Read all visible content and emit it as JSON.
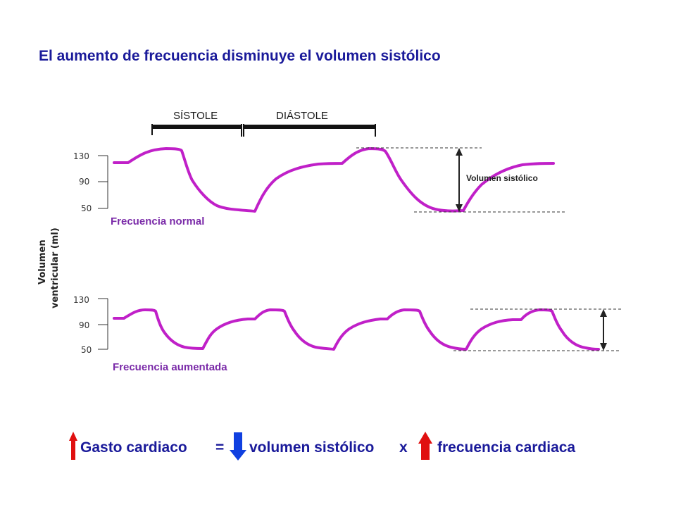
{
  "title": "El aumento de frecuencia disminuye el volumen sistólico",
  "phases": {
    "systole": "SÍSTOLE",
    "diastole": "DIÁSTOLE"
  },
  "y_axis_label": {
    "line1": "Volumen",
    "line2": "ventricular (ml)"
  },
  "ticks": [
    "130",
    "90",
    "50"
  ],
  "panels": {
    "normal": {
      "label": "Frecuencia normal"
    },
    "increased": {
      "label": "Frecuencia aumentada"
    }
  },
  "stroke_volume_label": "Volumen sistólico",
  "equation": {
    "left": "Gasto cardiaco",
    "equals": "=",
    "middle": "volumen sistólico",
    "times": "x",
    "right": "frecuencia cardiaca"
  },
  "colors": {
    "curve": "#c020c8",
    "title": "#1a1a9a",
    "arrow_up": "#e01010",
    "arrow_down": "#1040e0"
  }
}
